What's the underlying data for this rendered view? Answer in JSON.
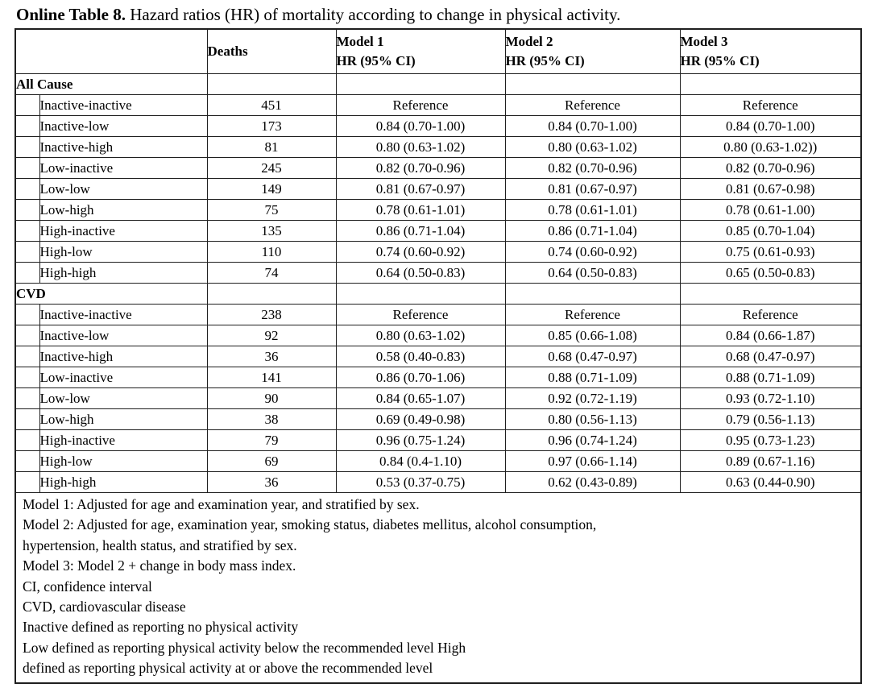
{
  "title": {
    "bold": "Online Table 8.",
    "rest": " Hazard ratios (HR) of mortality according to change in physical activity."
  },
  "table": {
    "header": {
      "deaths": "Deaths",
      "model1": {
        "line1": "Model 1",
        "line2": "HR (95% CI)"
      },
      "model2": {
        "line1": "Model 2",
        "line2": "HR (95% CI)"
      },
      "model3": {
        "line1": "Model 3",
        "line2": "HR (95% CI)"
      }
    },
    "sections": [
      {
        "name": "All Cause",
        "rows": [
          {
            "label": "Inactive-inactive",
            "deaths": "451",
            "m1": "Reference",
            "m2": "Reference",
            "m3": "Reference"
          },
          {
            "label": "Inactive-low",
            "deaths": "173",
            "m1": "0.84 (0.70-1.00)",
            "m2": "0.84 (0.70-1.00)",
            "m3": "0.84 (0.70-1.00)"
          },
          {
            "label": "Inactive-high",
            "deaths": "81",
            "m1": "0.80 (0.63-1.02)",
            "m2": "0.80 (0.63-1.02)",
            "m3": "0.80 (0.63-1.02))"
          },
          {
            "label": "Low-inactive",
            "deaths": "245",
            "m1": "0.82 (0.70-0.96)",
            "m2": "0.82 (0.70-0.96)",
            "m3": "0.82 (0.70-0.96)"
          },
          {
            "label": "Low-low",
            "deaths": "149",
            "m1": "0.81 (0.67-0.97)",
            "m2": "0.81 (0.67-0.97)",
            "m3": "0.81 (0.67-0.98)"
          },
          {
            "label": "Low-high",
            "deaths": "75",
            "m1": "0.78 (0.61-1.01)",
            "m2": "0.78 (0.61-1.01)",
            "m3": "0.78 (0.61-1.00)"
          },
          {
            "label": "High-inactive",
            "deaths": "135",
            "m1": "0.86 (0.71-1.04)",
            "m2": "0.86 (0.71-1.04)",
            "m3": "0.85 (0.70-1.04)"
          },
          {
            "label": "High-low",
            "deaths": "110",
            "m1": "0.74 (0.60-0.92)",
            "m2": "0.74 (0.60-0.92)",
            "m3": "0.75 (0.61-0.93)"
          },
          {
            "label": "High-high",
            "deaths": "74",
            "m1": "0.64 (0.50-0.83)",
            "m2": "0.64 (0.50-0.83)",
            "m3": "0.65 (0.50-0.83)"
          }
        ]
      },
      {
        "name": "CVD",
        "rows": [
          {
            "label": "Inactive-inactive",
            "deaths": "238",
            "m1": "Reference",
            "m2": "Reference",
            "m3": "Reference"
          },
          {
            "label": "Inactive-low",
            "deaths": "92",
            "m1": "0.80 (0.63-1.02)",
            "m2": "0.85 (0.66-1.08)",
            "m3": "0.84 (0.66-1.87)"
          },
          {
            "label": "Inactive-high",
            "deaths": "36",
            "m1": "0.58 (0.40-0.83)",
            "m2": "0.68 (0.47-0.97)",
            "m3": "0.68 (0.47-0.97)"
          },
          {
            "label": "Low-inactive",
            "deaths": "141",
            "m1": "0.86 (0.70-1.06)",
            "m2": "0.88 (0.71-1.09)",
            "m3": "0.88 (0.71-1.09)"
          },
          {
            "label": "Low-low",
            "deaths": "90",
            "m1": "0.84 (0.65-1.07)",
            "m2": "0.92 (0.72-1.19)",
            "m3": "0.93 (0.72-1.10)"
          },
          {
            "label": "Low-high",
            "deaths": "38",
            "m1": "0.69 (0.49-0.98)",
            "m2": "0.80 (0.56-1.13)",
            "m3": "0.79 (0.56-1.13)"
          },
          {
            "label": "High-inactive",
            "deaths": "79",
            "m1": "0.96 (0.75-1.24)",
            "m2": "0.96 (0.74-1.24)",
            "m3": "0.95 (0.73-1.23)"
          },
          {
            "label": "High-low",
            "deaths": "69",
            "m1": "0.84 (0.4-1.10)",
            "m2": "0.97 (0.66-1.14)",
            "m3": "0.89 (0.67-1.16)"
          },
          {
            "label": "High-high",
            "deaths": "36",
            "m1": "0.53 (0.37-0.75)",
            "m2": "0.62 (0.43-0.89)",
            "m3": "0.63 (0.44-0.90)"
          }
        ]
      }
    ],
    "footnotes": [
      "Model 1: Adjusted for age and examination year, and stratified by sex.",
      "Model 2: Adjusted for age, examination year, smoking status, diabetes mellitus, alcohol consumption,",
      "hypertension, health status, and stratified by sex.",
      "Model 3: Model 2 + change in body mass index.",
      "CI, confidence interval",
      "CVD, cardiovascular disease",
      "Inactive defined as reporting no physical activity",
      "Low defined as reporting physical activity below the recommended level High",
      "defined as reporting physical activity at or above the recommended level"
    ]
  }
}
